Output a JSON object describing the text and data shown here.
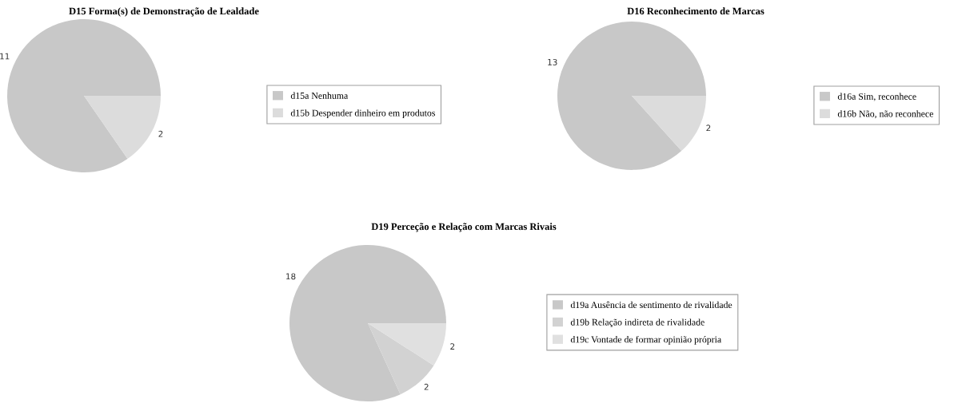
{
  "chart_data": [
    {
      "type": "pie",
      "title": "D15 Forma(s) de Demonstração de Lealdade",
      "categories": [
        "d15a Nenhuma",
        "d15b Despender dinheiro em produtos"
      ],
      "values": [
        11,
        2
      ],
      "colors": [
        "#c8c8c8",
        "#dcdcdc"
      ],
      "data_labels": true,
      "legend": "right"
    },
    {
      "type": "pie",
      "title": "D16 Reconhecimento de Marcas",
      "categories": [
        "d16a Sim, reconhece",
        "d16b Não, não reconhece"
      ],
      "values": [
        13,
        2
      ],
      "colors": [
        "#c8c8c8",
        "#dcdcdc"
      ],
      "data_labels": true,
      "legend": "right"
    },
    {
      "type": "pie",
      "title": "D19 Perceção e Relação com Marcas Rivais",
      "categories": [
        "d19a Ausência de sentimento de rivalidade",
        "d19b Relação indireta de rivalidade",
        "d19c Vontade de formar opinião própria"
      ],
      "values": [
        18,
        2,
        2
      ],
      "colors": [
        "#c8c8c8",
        "#d2d2d2",
        "#e0e0e0"
      ],
      "data_labels": true,
      "legend": "right"
    }
  ]
}
